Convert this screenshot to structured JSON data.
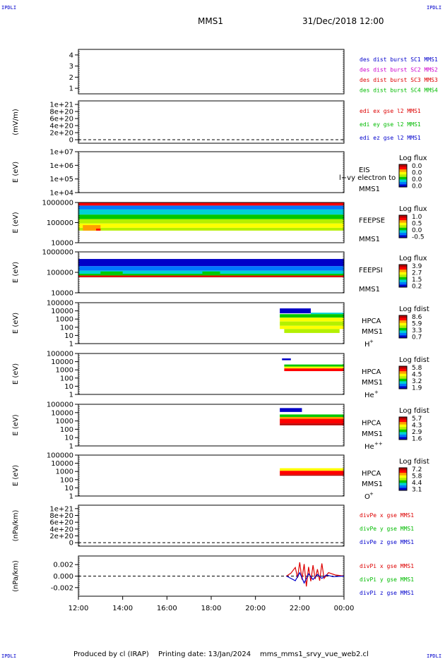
{
  "corner_labels": {
    "top_left": "IPDLI",
    "top_right": "IPDLI",
    "bottom_left": "IPDLI",
    "bottom_right": "IPDLI"
  },
  "header": {
    "mission": "MMS1",
    "datetime": "31/Dec/2018 12:00"
  },
  "footer": {
    "producer": "Produced by cl (IRAP)",
    "printed": "Printing date: 13/Jan/2024",
    "file": "mms_mms1_srvy_vue_web2.cl"
  },
  "colors": {
    "blue": "#0000cc",
    "magenta": "#cc00cc",
    "red": "#dd0000",
    "green": "#00bb00"
  },
  "colorscale": [
    "#0000c8",
    "#0078ff",
    "#00d2d2",
    "#00c800",
    "#b4f000",
    "#ffff00",
    "#ffa000",
    "#ff0000",
    "#b40000"
  ],
  "chart_data": {
    "type": "heatmap",
    "x_ticks": [
      "12:00",
      "14:00",
      "16:00",
      "18:00",
      "20:00",
      "22:00",
      "00:00"
    ],
    "panels": [
      {
        "id": "burst",
        "kind": "flags",
        "ylabel": "",
        "y_ticks": [
          "4",
          "3",
          "2",
          "1"
        ],
        "y_values": [
          4,
          3,
          2,
          1
        ],
        "ylim": [
          0.5,
          4.5
        ],
        "legend": [
          {
            "text": "des dist burst SC1 MMS1",
            "color": "blue"
          },
          {
            "text": "des dist burst SC2 MMS2",
            "color": "magenta"
          },
          {
            "text": "des dist burst SC3 MMS3",
            "color": "red"
          },
          {
            "text": "des dist burst SC4 MMS4",
            "color": "green"
          }
        ]
      },
      {
        "id": "edi",
        "kind": "line",
        "ylabel": "(mV/m)",
        "y_ticks": [
          "1e+21",
          "8e+20",
          "6e+20",
          "4e+20",
          "2e+20",
          "0"
        ],
        "y_values": [
          1e+21,
          8e+20,
          6e+20,
          4e+20,
          2e+20,
          0
        ],
        "ylim": [
          -1e+20,
          1.1e+21
        ],
        "legend": [
          {
            "text": "edi ex gse l2 MMS1",
            "color": "red"
          },
          {
            "text": "edi ey gse l2 MMS1",
            "color": "green"
          },
          {
            "text": "edi ez gse l2 MMS1",
            "color": "blue"
          }
        ]
      },
      {
        "id": "eis",
        "kind": "spectrogram",
        "ylabel": "E (eV)",
        "y_ticks": [
          "1e+07",
          "1e+06",
          "1e+05",
          "1e+04"
        ],
        "y_values": [
          10000000,
          1000000,
          100000,
          10000
        ],
        "ylog": true,
        "ylim": [
          10000,
          10000000
        ],
        "name": [
          "EIS",
          "MMS1"
        ],
        "overlay_text": "l+vy electron to",
        "cbar": {
          "title": "Log flux",
          "labels": [
            "0.0",
            "0.0",
            "0.0",
            "0.0"
          ]
        },
        "data": []
      },
      {
        "id": "feepse",
        "kind": "spectrogram",
        "ylabel": "E (eV)",
        "y_ticks": [
          "1000000",
          "100000",
          "10000"
        ],
        "y_values": [
          1000000,
          100000,
          10000
        ],
        "ylog": true,
        "ylim": [
          10000,
          1000000
        ],
        "name": [
          "FEEPSE",
          "MMS1"
        ],
        "cbar": {
          "title": "Log flux",
          "labels": [
            "1.0",
            "0.5",
            "0.0",
            "-0.5"
          ]
        },
        "data": [
          {
            "x": [
              12.0,
              24.0
            ],
            "e": [
              700000,
              1000000
            ],
            "level": 7
          },
          {
            "x": [
              12.0,
              24.0
            ],
            "e": [
              450000,
              700000
            ],
            "level": 1
          },
          {
            "x": [
              12.0,
              24.0
            ],
            "e": [
              250000,
              450000
            ],
            "level": 2
          },
          {
            "x": [
              12.0,
              24.0
            ],
            "e": [
              150000,
              250000
            ],
            "level": 3
          },
          {
            "x": [
              12.0,
              24.0
            ],
            "e": [
              90000,
              150000
            ],
            "level": 4
          },
          {
            "x": [
              12.0,
              24.0
            ],
            "e": [
              55000,
              90000
            ],
            "level": 5
          },
          {
            "x": [
              12.0,
              24.0
            ],
            "e": [
              40000,
              55000
            ],
            "level": 4
          },
          {
            "x": [
              12.2,
              13.0
            ],
            "e": [
              40000,
              75000
            ],
            "level": 6
          },
          {
            "x": [
              12.8,
              13.0
            ],
            "e": [
              40000,
              50000
            ],
            "level": 7
          }
        ]
      },
      {
        "id": "feepsi",
        "kind": "spectrogram",
        "ylabel": "E (eV)",
        "y_ticks": [
          "1000000",
          "100000",
          "10000"
        ],
        "y_values": [
          1000000,
          100000,
          10000
        ],
        "ylog": true,
        "ylim": [
          10000,
          1000000
        ],
        "name": [
          "FEEPSI",
          "MMS1"
        ],
        "cbar": {
          "title": "Log flux",
          "labels": [
            "3.9",
            "2.7",
            "1.5",
            "0.2"
          ]
        },
        "data": [
          {
            "x": [
              12.0,
              24.0
            ],
            "e": [
              200000,
              450000
            ],
            "level": 0
          },
          {
            "x": [
              12.0,
              24.0
            ],
            "e": [
              120000,
              200000
            ],
            "level": 1
          },
          {
            "x": [
              12.0,
              24.0
            ],
            "e": [
              85000,
              120000
            ],
            "level": 2
          },
          {
            "x": [
              12.0,
              24.0
            ],
            "e": [
              70000,
              85000
            ],
            "level": 3
          },
          {
            "x": [
              12.0,
              24.0
            ],
            "e": [
              62000,
              70000
            ],
            "level": 7
          },
          {
            "x": [
              12.0,
              24.0
            ],
            "e": [
              58000,
              62000
            ],
            "level": 8
          },
          {
            "x": [
              13.0,
              14.0
            ],
            "e": [
              85000,
              110000
            ],
            "level": 3
          },
          {
            "x": [
              17.6,
              18.4
            ],
            "e": [
              85000,
              110000
            ],
            "level": 3
          }
        ]
      },
      {
        "id": "hpca_h",
        "kind": "spectrogram",
        "ylabel": "E (eV)",
        "y_ticks": [
          "100000",
          "10000",
          "1000",
          "100",
          "10",
          "1"
        ],
        "y_values": [
          100000,
          10000,
          1000,
          100,
          10,
          1
        ],
        "ylog": true,
        "ylim": [
          1,
          100000
        ],
        "name": [
          "HPCA",
          "MMS1"
        ],
        "species": "H",
        "charge": "+",
        "cbar": {
          "title": "Log fdist",
          "labels": [
            "8.6",
            "5.9",
            "3.3",
            "0.7"
          ]
        },
        "data": [
          {
            "x": [
              21.1,
              22.5
            ],
            "e": [
              5000,
              20000
            ],
            "level": 0
          },
          {
            "x": [
              22.5,
              24.0
            ],
            "e": [
              4000,
              6000
            ],
            "level": 2
          },
          {
            "x": [
              21.1,
              24.0
            ],
            "e": [
              1500,
              4000
            ],
            "level": 3
          },
          {
            "x": [
              21.1,
              24.0
            ],
            "e": [
              500,
              1500
            ],
            "level": 5
          },
          {
            "x": [
              21.1,
              24.0
            ],
            "e": [
              150,
              500
            ],
            "level": 4
          },
          {
            "x": [
              21.1,
              24.0
            ],
            "e": [
              60,
              150
            ],
            "level": 5
          },
          {
            "x": [
              21.3,
              23.8
            ],
            "e": [
              20,
              60
            ],
            "level": 4
          }
        ]
      },
      {
        "id": "hpca_he",
        "kind": "spectrogram",
        "ylabel": "E (eV)",
        "y_ticks": [
          "100000",
          "10000",
          "1000",
          "100",
          "10",
          "1"
        ],
        "y_values": [
          100000,
          10000,
          1000,
          100,
          10,
          1
        ],
        "ylog": true,
        "ylim": [
          1,
          100000
        ],
        "name": [
          "HPCA",
          "MMS1"
        ],
        "species": "He",
        "charge": "+",
        "cbar": {
          "title": "Log fdist",
          "labels": [
            "5.8",
            "4.5",
            "3.2",
            "1.9"
          ]
        },
        "data": [
          {
            "x": [
              21.3,
              24.0
            ],
            "e": [
              2500,
              4500
            ],
            "level": 3
          },
          {
            "x": [
              21.3,
              24.0
            ],
            "e": [
              1500,
              2500
            ],
            "level": 5
          },
          {
            "x": [
              21.3,
              24.0
            ],
            "e": [
              700,
              1500
            ],
            "level": 7
          },
          {
            "x": [
              21.2,
              21.6
            ],
            "e": [
              15000,
              25000
            ],
            "level": 0
          }
        ]
      },
      {
        "id": "hpca_hepp",
        "kind": "spectrogram",
        "ylabel": "E (eV)",
        "y_ticks": [
          "100000",
          "10000",
          "1000",
          "100",
          "10",
          "1"
        ],
        "y_values": [
          100000,
          10000,
          1000,
          100,
          10,
          1
        ],
        "ylog": true,
        "ylim": [
          1,
          100000
        ],
        "name": [
          "HPCA",
          "MMS1"
        ],
        "species": "He",
        "charge": "++",
        "cbar": {
          "title": "Log fdist",
          "labels": [
            "5.7",
            "4.3",
            "2.9",
            "1.6"
          ]
        },
        "data": [
          {
            "x": [
              21.1,
              22.1
            ],
            "e": [
              12000,
              35000
            ],
            "level": 0
          },
          {
            "x": [
              21.1,
              24.0
            ],
            "e": [
              3000,
              6000
            ],
            "level": 3
          },
          {
            "x": [
              21.1,
              24.0
            ],
            "e": [
              1800,
              3000
            ],
            "level": 6
          },
          {
            "x": [
              21.1,
              24.0
            ],
            "e": [
              500,
              1800
            ],
            "level": 7
          },
          {
            "x": [
              21.1,
              24.0
            ],
            "e": [
              300,
              500
            ],
            "level": 8
          }
        ]
      },
      {
        "id": "hpca_o",
        "kind": "spectrogram",
        "ylabel": "E (eV)",
        "y_ticks": [
          "100000",
          "10000",
          "1000",
          "100",
          "10",
          "1"
        ],
        "y_values": [
          100000,
          10000,
          1000,
          100,
          10,
          1
        ],
        "ylog": true,
        "ylim": [
          1,
          100000
        ],
        "name": [
          "HPCA",
          "MMS1"
        ],
        "species": "O",
        "charge": "+",
        "cbar": {
          "title": "Log fdist",
          "labels": [
            "7.2",
            "5.8",
            "4.4",
            "3.1"
          ]
        },
        "data": [
          {
            "x": [
              21.1,
              24.0
            ],
            "e": [
              1200,
              2500
            ],
            "level": 5
          },
          {
            "x": [
              21.1,
              24.0
            ],
            "e": [
              400,
              1200
            ],
            "level": 7
          },
          {
            "x": [
              21.1,
              24.0
            ],
            "e": [
              300,
              400
            ],
            "level": 8
          }
        ]
      },
      {
        "id": "divpe",
        "kind": "line",
        "ylabel": "(nPa/km)",
        "y_ticks": [
          "1e+21",
          "8e+20",
          "6e+20",
          "4e+20",
          "2e+20",
          "0"
        ],
        "y_values": [
          1e+21,
          8e+20,
          6e+20,
          4e+20,
          2e+20,
          0
        ],
        "ylim": [
          -1e+20,
          1.1e+21
        ],
        "legend": [
          {
            "text": "divPe x gse MMS1",
            "color": "red"
          },
          {
            "text": "divPe y gse MMS1",
            "color": "green"
          },
          {
            "text": "divPe z gse MMS1",
            "color": "blue"
          }
        ]
      },
      {
        "id": "divpi",
        "kind": "line",
        "ylabel": "(nPa/km)",
        "y_ticks": [
          "0.002",
          "0.000",
          "-0.002"
        ],
        "y_values": [
          0.002,
          0.0,
          -0.002
        ],
        "ylim": [
          -0.0035,
          0.0035
        ],
        "legend": [
          {
            "text": "divPi x gse MMS1",
            "color": "red"
          },
          {
            "text": "divPi y gse MMS1",
            "color": "green"
          },
          {
            "text": "divPi z gse MMS1",
            "color": "blue"
          }
        ],
        "series": [
          {
            "name": "divPi x gse MMS1",
            "color": "red",
            "x": [
              21.4,
              21.6,
              21.8,
              21.9,
              22.0,
              22.1,
              22.2,
              22.3,
              22.4,
              22.5,
              22.6,
              22.7,
              22.8,
              22.9,
              23.0,
              23.1,
              23.3,
              23.6,
              24.0
            ],
            "y": [
              0.0,
              0.0005,
              0.0015,
              -0.0003,
              0.0024,
              -0.0006,
              0.0021,
              -0.0018,
              0.0016,
              -0.0009,
              0.0019,
              -0.0005,
              0.0012,
              -0.0008,
              0.0022,
              -0.0004,
              0.0006,
              0.0002,
              0.0
            ]
          },
          {
            "name": "divPi z gse MMS1",
            "color": "blue",
            "x": [
              21.4,
              21.6,
              21.8,
              22.0,
              22.2,
              22.4,
              22.6,
              22.8,
              23.0,
              23.2,
              23.5,
              24.0
            ],
            "y": [
              0.0,
              -0.0004,
              -0.0008,
              0.0006,
              -0.0012,
              0.0004,
              -0.0006,
              0.0003,
              -0.0004,
              0.0002,
              -0.0001,
              0.0
            ]
          }
        ]
      }
    ]
  }
}
